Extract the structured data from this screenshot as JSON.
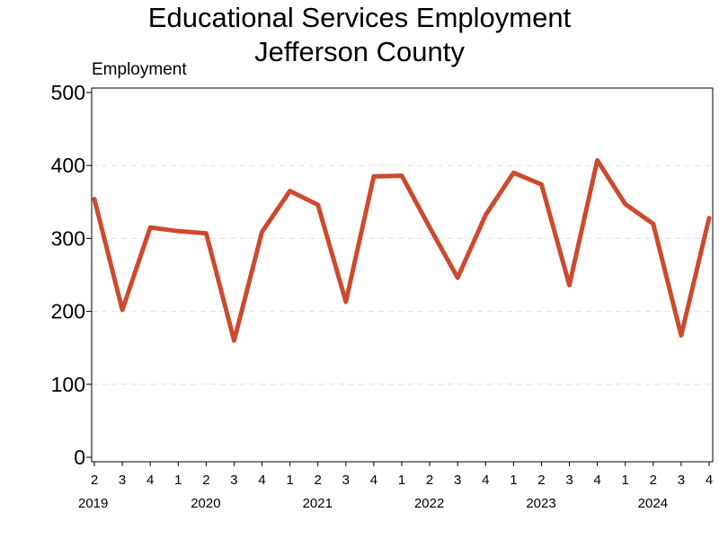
{
  "chart_data": {
    "type": "line",
    "title": "Educational Services Employment",
    "subtitle": "Jefferson County",
    "xlabel": "",
    "ylabel": "Employment",
    "ylim": [
      0,
      500
    ],
    "yticks": [
      0,
      100,
      200,
      300,
      400,
      500
    ],
    "grid": "horizontal dashed",
    "x": [
      {
        "year": "2019",
        "quarter": "2"
      },
      {
        "year": "2019",
        "quarter": "3"
      },
      {
        "year": "2019",
        "quarter": "4"
      },
      {
        "year": "2020",
        "quarter": "1"
      },
      {
        "year": "2020",
        "quarter": "2"
      },
      {
        "year": "2020",
        "quarter": "3"
      },
      {
        "year": "2020",
        "quarter": "4"
      },
      {
        "year": "2021",
        "quarter": "1"
      },
      {
        "year": "2021",
        "quarter": "2"
      },
      {
        "year": "2021",
        "quarter": "3"
      },
      {
        "year": "2021",
        "quarter": "4"
      },
      {
        "year": "2022",
        "quarter": "1"
      },
      {
        "year": "2022",
        "quarter": "2"
      },
      {
        "year": "2022",
        "quarter": "3"
      },
      {
        "year": "2022",
        "quarter": "4"
      },
      {
        "year": "2023",
        "quarter": "1"
      },
      {
        "year": "2023",
        "quarter": "2"
      },
      {
        "year": "2023",
        "quarter": "3"
      },
      {
        "year": "2023",
        "quarter": "4"
      },
      {
        "year": "2024",
        "quarter": "1"
      },
      {
        "year": "2024",
        "quarter": "2"
      },
      {
        "year": "2024",
        "quarter": "3"
      },
      {
        "year": "2024",
        "quarter": "4"
      }
    ],
    "year_labels": [
      "2019",
      "2020",
      "2021",
      "2022",
      "2023",
      "2024"
    ],
    "series": [
      {
        "color": "#cc4a2e",
        "values": [
          354,
          202,
          315,
          310,
          307,
          160,
          309,
          365,
          346,
          213,
          385,
          386,
          315,
          246,
          332,
          390,
          374,
          236,
          407,
          347,
          320,
          167,
          328
        ]
      }
    ]
  }
}
